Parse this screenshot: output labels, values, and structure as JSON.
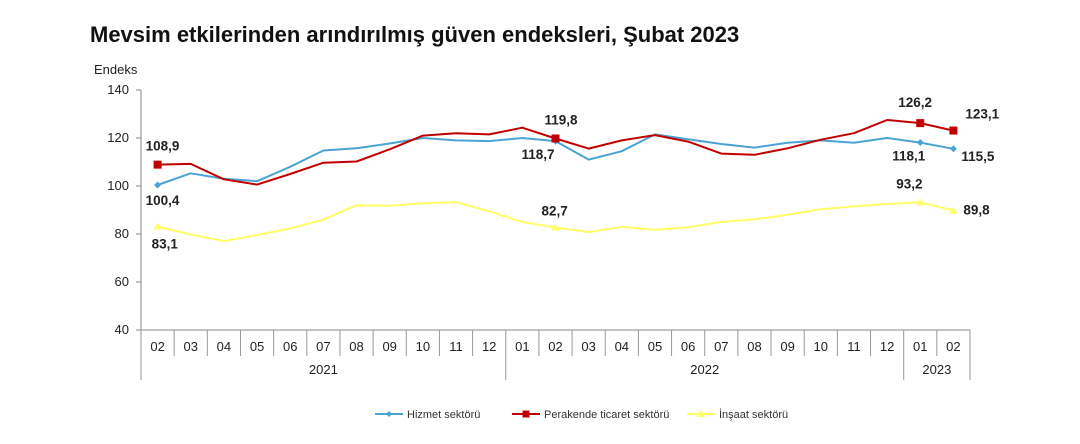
{
  "title": "Mevsim etkilerinden arındırılmış güven endeksleri, Şubat 2023",
  "chart_data": {
    "type": "line",
    "title": "Mevsim etkilerinden arındırılmış güven endeksleri, Şubat 2023",
    "ylabel": "Endeks",
    "xlabel": "",
    "ylim": [
      40,
      140
    ],
    "yticks": [
      40,
      60,
      80,
      100,
      120,
      140
    ],
    "grid": false,
    "legend_position": "bottom",
    "categories": [
      "02",
      "03",
      "04",
      "05",
      "06",
      "07",
      "08",
      "09",
      "10",
      "11",
      "12",
      "01",
      "02",
      "03",
      "04",
      "05",
      "06",
      "07",
      "08",
      "09",
      "10",
      "11",
      "12",
      "01",
      "02"
    ],
    "years": [
      {
        "label": "2021",
        "start": 0,
        "end": 10
      },
      {
        "label": "2022",
        "start": 11,
        "end": 22
      },
      {
        "label": "2023",
        "start": 23,
        "end": 24
      }
    ],
    "series": [
      {
        "name": "Hizmet sektörü",
        "color": "#4BA3D3",
        "marker": "diamond",
        "values": [
          100.4,
          105.3,
          103.0,
          102.0,
          108.0,
          114.8,
          115.7,
          117.7,
          120.0,
          119.0,
          118.7,
          120.0,
          118.7,
          111.0,
          114.5,
          121.5,
          119.5,
          117.5,
          116.0,
          118.0,
          119.0,
          118.0,
          120.0,
          118.1,
          115.5
        ]
      },
      {
        "name": "Perakende ticaret sektörü",
        "color": "#C00000",
        "marker": "square",
        "values": [
          108.9,
          109.2,
          102.8,
          100.6,
          105.0,
          109.7,
          110.2,
          115.3,
          121.0,
          122.0,
          121.5,
          124.3,
          119.8,
          115.6,
          119.0,
          121.2,
          118.5,
          113.5,
          113.0,
          115.7,
          119.3,
          122.0,
          127.5,
          126.2,
          123.1
        ]
      },
      {
        "name": "İnşaat sektörü",
        "color": "#FFFF66",
        "marker": "triangle",
        "values": [
          83.1,
          79.8,
          77.0,
          79.6,
          82.3,
          86.0,
          92.0,
          91.8,
          92.8,
          93.3,
          89.5,
          85.0,
          82.7,
          80.8,
          83.0,
          81.7,
          82.8,
          85.0,
          86.1,
          88.0,
          90.3,
          91.5,
          92.5,
          93.2,
          89.8
        ]
      }
    ],
    "data_labels": [
      {
        "series": 1,
        "index": 0,
        "text": "108,9"
      },
      {
        "series": 0,
        "index": 0,
        "text": "100,4"
      },
      {
        "series": 2,
        "index": 0,
        "text": "83,1"
      },
      {
        "series": 1,
        "index": 12,
        "text": "119,8"
      },
      {
        "series": 0,
        "index": 12,
        "text": "118,7"
      },
      {
        "series": 2,
        "index": 12,
        "text": "82,7"
      },
      {
        "series": 1,
        "index": 23,
        "text": "126,2"
      },
      {
        "series": 0,
        "index": 23,
        "text": "118,1"
      },
      {
        "series": 2,
        "index": 23,
        "text": "93,2"
      },
      {
        "series": 1,
        "index": 24,
        "text": "123,1"
      },
      {
        "series": 0,
        "index": 24,
        "text": "115,5"
      },
      {
        "series": 2,
        "index": 24,
        "text": "89,8"
      }
    ]
  }
}
